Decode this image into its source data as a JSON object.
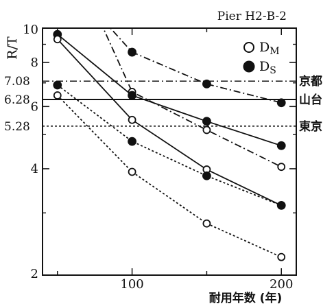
{
  "chart_data": {
    "type": "line",
    "title": "Pier H2-B-2",
    "xlabel": "耐用年数 (年)",
    "ylabel": "R/T",
    "xlim": [
      40,
      210
    ],
    "ylim": [
      2,
      10
    ],
    "xticks": [
      {
        "value": 100,
        "label": "100"
      },
      {
        "value": 200,
        "label": "200"
      }
    ],
    "yticks": [
      {
        "value": 10,
        "label": "10"
      },
      {
        "value": 8,
        "label": "8"
      },
      {
        "value": 6,
        "label": "6"
      },
      {
        "value": 4,
        "label": "4"
      },
      {
        "value": 2,
        "label": "2"
      }
    ],
    "legend": {
      "placement": "top-right",
      "entries": [
        {
          "marker": "open",
          "main": "D",
          "sub": "M"
        },
        {
          "marker": "filled",
          "main": "D",
          "sub": "S"
        }
      ]
    },
    "reference_lines": [
      {
        "value": 7.08,
        "value_label": "7.08",
        "city": "京都",
        "style": "dashdot"
      },
      {
        "value": 6.28,
        "value_label": "6.28",
        "city": "山台",
        "style": "solid"
      },
      {
        "value": 5.28,
        "value_label": "5.28",
        "city": "東京",
        "style": "dotted"
      }
    ],
    "series": [
      {
        "marker": "filled",
        "style": "dashdot",
        "x": [
          75,
          100,
          150,
          200
        ],
        "y": [
          11.2,
          8.55,
          6.95,
          6.15
        ]
      },
      {
        "marker": "open",
        "style": "dashdot",
        "x": [
          75,
          100,
          150,
          200
        ],
        "y": [
          11.3,
          6.6,
          5.15,
          4.05
        ]
      },
      {
        "marker": "filled",
        "style": "solid",
        "x": [
          50,
          100,
          150,
          200
        ],
        "y": [
          9.6,
          6.45,
          5.45,
          4.65
        ]
      },
      {
        "marker": "open",
        "style": "solid",
        "x": [
          50,
          100,
          150,
          200
        ],
        "y": [
          9.3,
          5.5,
          3.98,
          3.15
        ]
      },
      {
        "marker": "filled",
        "style": "dotted",
        "x": [
          50,
          100,
          150,
          200
        ],
        "y": [
          6.9,
          4.78,
          3.82,
          3.15
        ]
      },
      {
        "marker": "open",
        "style": "dotted",
        "x": [
          50,
          100,
          150,
          200
        ],
        "y": [
          6.45,
          3.92,
          2.8,
          2.25
        ]
      }
    ]
  }
}
